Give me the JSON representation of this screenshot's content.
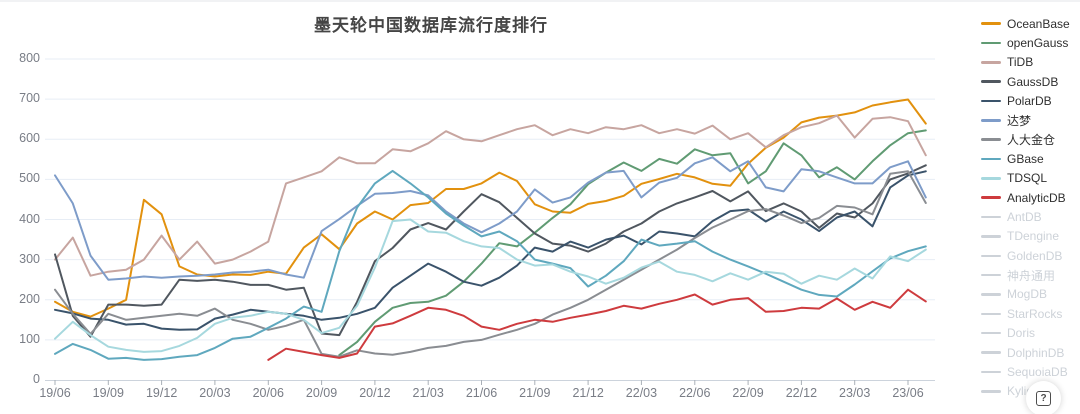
{
  "title": "墨天轮中国数据库流行度排行",
  "help_button": {
    "glyph": "?"
  },
  "colors": {
    "grid": "#e7edf5",
    "axis_line": "#ccd3dc",
    "tick": "#aab0b8",
    "axis_label": "#797d86",
    "title": "#454545",
    "legend_active": "#2f2f2f",
    "legend_disabled": "#cdd2d8",
    "background": "#ffffff"
  },
  "chart_data": {
    "type": "line",
    "title": "墨天轮中国数据库流行度排行",
    "grid": "horizontal-only",
    "legend_position": "right",
    "x_monthly": [
      "19/06",
      "19/07",
      "19/08",
      "19/09",
      "19/10",
      "19/11",
      "19/12",
      "20/01",
      "20/02",
      "20/03",
      "20/04",
      "20/05",
      "20/06",
      "20/07",
      "20/08",
      "20/09",
      "20/10",
      "20/11",
      "20/12",
      "21/01",
      "21/02",
      "21/03",
      "21/04",
      "21/05",
      "21/06",
      "21/07",
      "21/08",
      "21/09",
      "21/10",
      "21/11",
      "21/12",
      "22/01",
      "22/02",
      "22/03",
      "22/04",
      "22/05",
      "22/06",
      "22/07",
      "22/08",
      "22/09",
      "22/10",
      "22/11",
      "22/12",
      "23/01",
      "23/02",
      "23/03",
      "23/04",
      "23/05",
      "23/06",
      "23/07"
    ],
    "x_axis_tick_labels": [
      "19/06",
      "19/09",
      "19/12",
      "20/03",
      "20/06",
      "20/09",
      "20/12",
      "21/03",
      "21/06",
      "21/09",
      "21/12",
      "22/03",
      "22/06",
      "22/09",
      "22/12",
      "23/03",
      "23/06"
    ],
    "y_axis": {
      "min": 0,
      "max": 800,
      "step": 100,
      "ticks": [
        0,
        100,
        200,
        300,
        400,
        500,
        600,
        700,
        800
      ]
    },
    "series": [
      {
        "name": "OceanBase",
        "color": "#E2910E",
        "values": [
          195,
          170,
          158,
          178,
          200,
          449,
          413,
          283,
          263,
          258,
          263,
          262,
          270,
          265,
          330,
          363,
          326,
          390,
          420,
          400,
          436,
          441,
          476,
          476,
          490,
          517,
          496,
          438,
          420,
          417,
          439,
          446,
          459,
          489,
          501,
          514,
          505,
          489,
          484,
          539,
          579,
          604,
          642,
          654,
          659,
          667,
          684,
          692,
          699,
          639
        ]
      },
      {
        "name": "openGauss",
        "color": "#609B73",
        "values": [
          null,
          null,
          null,
          null,
          null,
          null,
          null,
          null,
          null,
          null,
          null,
          null,
          null,
          null,
          null,
          null,
          62,
          95,
          145,
          180,
          192,
          195,
          210,
          245,
          290,
          341,
          333,
          367,
          404,
          438,
          488,
          517,
          542,
          521,
          551,
          539,
          575,
          560,
          565,
          490,
          520,
          590,
          560,
          505,
          530,
          500,
          545,
          585,
          615,
          622
        ]
      },
      {
        "name": "TiDB",
        "color": "#C7A5A0",
        "values": [
          300,
          355,
          260,
          270,
          275,
          300,
          360,
          300,
          345,
          290,
          300,
          320,
          345,
          490,
          505,
          520,
          555,
          540,
          540,
          575,
          570,
          590,
          620,
          600,
          595,
          610,
          625,
          635,
          610,
          625,
          615,
          630,
          625,
          635,
          615,
          625,
          614,
          634,
          600,
          615,
          580,
          610,
          630,
          640,
          659,
          604,
          651,
          655,
          645,
          560
        ]
      },
      {
        "name": "GaussDB",
        "color": "#50575F",
        "values": [
          313,
          160,
          108,
          188,
          188,
          185,
          188,
          250,
          247,
          250,
          245,
          237,
          237,
          225,
          230,
          116,
          112,
          195,
          296,
          329,
          375,
          391,
          375,
          420,
          463,
          443,
          404,
          365,
          340,
          335,
          320,
          340,
          370,
          390,
          420,
          440,
          455,
          471,
          445,
          470,
          421,
          440,
          420,
          379,
          415,
          405,
          440,
          500,
          515,
          535
        ]
      },
      {
        "name": "PolarDB",
        "color": "#3A536B",
        "values": [
          175,
          166,
          153,
          150,
          138,
          140,
          128,
          125,
          126,
          153,
          163,
          175,
          170,
          165,
          160,
          150,
          155,
          165,
          180,
          230,
          260,
          290,
          270,
          245,
          235,
          255,
          285,
          330,
          320,
          345,
          330,
          350,
          360,
          338,
          370,
          365,
          358,
          396,
          421,
          425,
          395,
          420,
          400,
          371,
          405,
          420,
          383,
          480,
          510,
          520
        ]
      },
      {
        "name": "达梦",
        "color": "#7E9CC9",
        "values": [
          510,
          440,
          310,
          250,
          253,
          258,
          255,
          258,
          260,
          263,
          268,
          270,
          275,
          263,
          255,
          371,
          401,
          434,
          464,
          466,
          471,
          460,
          420,
          390,
          368,
          390,
          420,
          475,
          442,
          455,
          492,
          517,
          521,
          455,
          492,
          504,
          540,
          555,
          520,
          545,
          480,
          470,
          525,
          520,
          505,
          490,
          490,
          530,
          545,
          455
        ]
      },
      {
        "name": "人大金仓",
        "color": "#8A8D92",
        "values": [
          225,
          165,
          115,
          165,
          150,
          155,
          160,
          165,
          160,
          178,
          150,
          140,
          125,
          135,
          150,
          65,
          58,
          74,
          66,
          63,
          70,
          80,
          85,
          95,
          100,
          113,
          125,
          140,
          163,
          180,
          200,
          225,
          250,
          275,
          300,
          325,
          354,
          380,
          400,
          421,
          426,
          410,
          391,
          404,
          434,
          430,
          413,
          514,
          520,
          441
        ]
      },
      {
        "name": "GBase",
        "color": "#5FA8BE",
        "values": [
          65,
          90,
          75,
          53,
          55,
          50,
          52,
          58,
          62,
          80,
          103,
          108,
          130,
          153,
          183,
          170,
          321,
          430,
          490,
          521,
          490,
          455,
          415,
          385,
          358,
          370,
          346,
          300,
          290,
          279,
          233,
          260,
          296,
          350,
          335,
          340,
          346,
          320,
          300,
          283,
          265,
          245,
          225,
          212,
          208,
          238,
          271,
          303,
          321,
          333
        ]
      },
      {
        "name": "TDSQL",
        "color": "#A6D8DE",
        "values": [
          103,
          145,
          112,
          83,
          75,
          70,
          72,
          85,
          105,
          140,
          155,
          160,
          170,
          165,
          150,
          117,
          130,
          185,
          280,
          396,
          400,
          370,
          367,
          346,
          333,
          329,
          300,
          285,
          288,
          270,
          258,
          240,
          255,
          280,
          295,
          270,
          262,
          246,
          266,
          250,
          270,
          265,
          240,
          260,
          250,
          278,
          253,
          308,
          296,
          325
        ]
      },
      {
        "name": "AnalyticDB",
        "color": "#CE3B3E",
        "values": [
          null,
          null,
          null,
          null,
          null,
          null,
          null,
          null,
          null,
          null,
          null,
          null,
          50,
          78,
          70,
          62,
          55,
          66,
          133,
          141,
          160,
          180,
          175,
          160,
          133,
          125,
          140,
          150,
          145,
          155,
          163,
          172,
          185,
          178,
          190,
          200,
          213,
          188,
          200,
          204,
          170,
          172,
          180,
          178,
          203,
          175,
          195,
          180,
          225,
          196
        ]
      }
    ],
    "disabled_series": [
      "AntDB",
      "TDengine",
      "GoldenDB",
      "神舟通用",
      "MogDB",
      "StarRocks",
      "Doris",
      "DolphinDB",
      "SequoiaDB",
      "Kyligence"
    ]
  }
}
